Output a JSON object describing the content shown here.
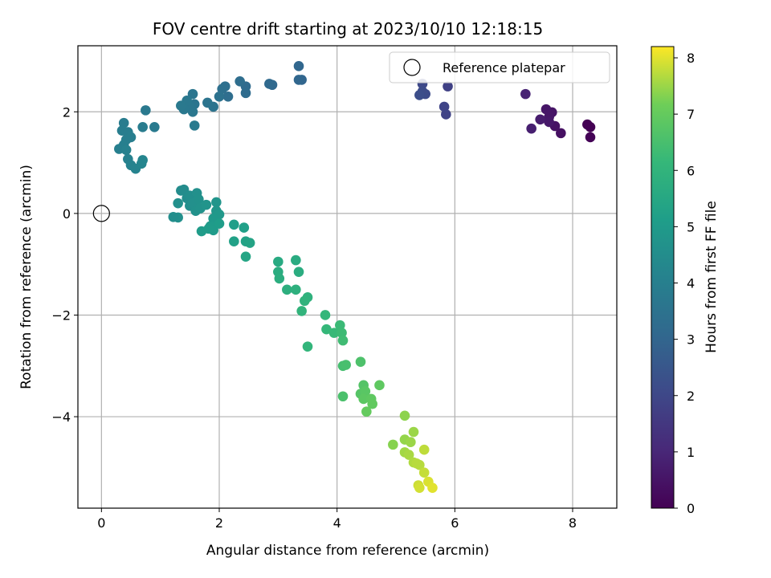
{
  "chart_data": {
    "type": "scatter",
    "title": "FOV centre drift starting at 2023/10/10 12:18:15",
    "xlabel": "Angular distance from reference (arcmin)",
    "ylabel": "Rotation from reference (arcmin)",
    "xlim": [
      -0.4,
      8.75
    ],
    "ylim": [
      -5.8,
      3.3
    ],
    "xticks": [
      0,
      2,
      4,
      6,
      8
    ],
    "yticks": [
      -4,
      -2,
      0,
      2
    ],
    "grid": true,
    "legend": {
      "placement": "top-right",
      "entries": [
        "Reference platepar"
      ]
    },
    "reference_point": {
      "x": 0,
      "y": 0
    },
    "colorbar": {
      "label": "Hours from first FF file",
      "min": 0,
      "max": 8.2,
      "ticks": [
        0,
        1,
        2,
        3,
        4,
        5,
        6,
        7,
        8
      ],
      "colormap": "viridis"
    },
    "series": [
      {
        "points": [
          [
            8.3,
            1.7,
            0.0
          ],
          [
            8.25,
            1.75,
            0.0
          ],
          [
            8.3,
            1.5,
            0.05
          ],
          [
            7.8,
            1.58,
            0.4
          ],
          [
            7.7,
            1.72,
            0.45
          ],
          [
            7.65,
            1.99,
            0.5
          ],
          [
            7.55,
            2.05,
            0.55
          ],
          [
            7.6,
            1.9,
            0.55
          ],
          [
            7.6,
            1.8,
            0.6
          ],
          [
            7.45,
            1.85,
            0.7
          ],
          [
            7.3,
            1.67,
            0.8
          ],
          [
            7.2,
            2.35,
            0.9
          ],
          [
            5.88,
            2.5,
            1.8
          ],
          [
            5.85,
            1.95,
            1.85
          ],
          [
            5.82,
            2.1,
            1.9
          ],
          [
            5.45,
            2.55,
            2.05
          ],
          [
            5.5,
            2.35,
            2.1
          ],
          [
            5.45,
            2.4,
            2.15
          ],
          [
            5.4,
            2.33,
            2.2
          ],
          [
            3.4,
            2.63,
            3.0
          ],
          [
            3.35,
            2.9,
            3.05
          ],
          [
            3.35,
            2.63,
            3.05
          ],
          [
            2.9,
            2.53,
            3.1
          ],
          [
            2.85,
            2.55,
            3.15
          ],
          [
            2.45,
            2.5,
            3.2
          ],
          [
            2.45,
            2.37,
            3.25
          ],
          [
            2.35,
            2.6,
            3.3
          ],
          [
            2.15,
            2.3,
            3.3
          ],
          [
            2.1,
            2.5,
            3.35
          ],
          [
            2.05,
            2.45,
            3.4
          ],
          [
            2.0,
            2.3,
            3.45
          ],
          [
            1.9,
            2.1,
            3.5
          ],
          [
            1.8,
            2.18,
            3.55
          ],
          [
            1.55,
            2.35,
            3.6
          ],
          [
            1.58,
            2.15,
            3.6
          ],
          [
            1.55,
            2.0,
            3.65
          ],
          [
            1.5,
            2.1,
            3.65
          ],
          [
            1.45,
            2.22,
            3.7
          ],
          [
            1.4,
            2.05,
            3.7
          ],
          [
            1.35,
            2.12,
            3.75
          ],
          [
            1.58,
            1.73,
            3.8
          ],
          [
            0.75,
            2.03,
            3.75
          ],
          [
            0.9,
            1.7,
            3.8
          ],
          [
            0.7,
            1.7,
            3.85
          ],
          [
            0.38,
            1.78,
            3.85
          ],
          [
            0.35,
            1.63,
            3.9
          ],
          [
            0.45,
            1.6,
            3.9
          ],
          [
            0.5,
            1.5,
            3.95
          ],
          [
            0.42,
            1.45,
            3.95
          ],
          [
            0.38,
            1.35,
            4.0
          ],
          [
            0.3,
            1.27,
            4.0
          ],
          [
            0.42,
            1.25,
            4.05
          ],
          [
            0.45,
            1.07,
            4.05
          ],
          [
            0.5,
            0.95,
            4.1
          ],
          [
            0.58,
            0.88,
            4.15
          ],
          [
            0.68,
            0.98,
            4.2
          ],
          [
            0.7,
            1.05,
            4.2
          ],
          [
            1.35,
            0.45,
            4.45
          ],
          [
            1.4,
            0.47,
            4.45
          ],
          [
            1.45,
            0.3,
            4.5
          ],
          [
            1.5,
            0.35,
            4.55
          ],
          [
            1.5,
            0.15,
            4.55
          ],
          [
            1.55,
            0.2,
            4.6
          ],
          [
            1.62,
            0.4,
            4.6
          ],
          [
            1.65,
            0.28,
            4.65
          ],
          [
            1.6,
            0.05,
            4.65
          ],
          [
            1.68,
            0.1,
            4.7
          ],
          [
            1.78,
            0.17,
            4.75
          ],
          [
            1.3,
            0.2,
            4.6
          ],
          [
            1.3,
            -0.08,
            4.6
          ],
          [
            1.22,
            -0.07,
            4.55
          ],
          [
            1.95,
            0.22,
            4.8
          ],
          [
            1.95,
            0.05,
            4.85
          ],
          [
            2.0,
            -0.02,
            4.9
          ],
          [
            1.9,
            -0.1,
            4.95
          ],
          [
            1.85,
            -0.25,
            5.0
          ],
          [
            1.9,
            -0.33,
            5.0
          ],
          [
            1.82,
            -0.3,
            5.05
          ],
          [
            1.7,
            -0.35,
            5.05
          ],
          [
            2.0,
            -0.2,
            5.1
          ],
          [
            2.25,
            -0.22,
            5.15
          ],
          [
            2.42,
            -0.28,
            5.2
          ],
          [
            2.25,
            -0.55,
            5.25
          ],
          [
            2.45,
            -0.55,
            5.3
          ],
          [
            2.52,
            -0.58,
            5.35
          ],
          [
            2.45,
            -0.85,
            5.4
          ],
          [
            3.0,
            -0.95,
            5.6
          ],
          [
            3.3,
            -0.92,
            5.65
          ],
          [
            3.35,
            -1.15,
            5.7
          ],
          [
            3.0,
            -1.15,
            5.7
          ],
          [
            3.02,
            -1.28,
            5.75
          ],
          [
            3.15,
            -1.5,
            5.8
          ],
          [
            3.3,
            -1.5,
            5.85
          ],
          [
            3.5,
            -1.65,
            5.9
          ],
          [
            3.45,
            -1.72,
            5.95
          ],
          [
            3.4,
            -1.92,
            6.0
          ],
          [
            3.5,
            -2.62,
            6.05
          ],
          [
            3.8,
            -2.0,
            6.1
          ],
          [
            3.82,
            -2.28,
            6.15
          ],
          [
            3.95,
            -2.35,
            6.2
          ],
          [
            4.05,
            -2.2,
            6.25
          ],
          [
            4.08,
            -2.35,
            6.3
          ],
          [
            4.1,
            -2.5,
            6.35
          ],
          [
            4.1,
            -3.0,
            6.45
          ],
          [
            4.15,
            -2.98,
            6.5
          ],
          [
            4.4,
            -2.92,
            6.6
          ],
          [
            4.1,
            -3.6,
            6.55
          ],
          [
            4.45,
            -3.38,
            6.7
          ],
          [
            4.4,
            -3.55,
            6.75
          ],
          [
            4.48,
            -3.5,
            6.8
          ],
          [
            4.45,
            -3.65,
            6.85
          ],
          [
            4.58,
            -3.65,
            6.9
          ],
          [
            4.6,
            -3.75,
            6.95
          ],
          [
            4.5,
            -3.9,
            7.0
          ],
          [
            4.72,
            -3.38,
            6.9
          ],
          [
            4.95,
            -4.55,
            7.35
          ],
          [
            5.15,
            -3.98,
            7.4
          ],
          [
            5.15,
            -4.45,
            7.45
          ],
          [
            5.25,
            -4.5,
            7.5
          ],
          [
            5.3,
            -4.3,
            7.5
          ],
          [
            5.15,
            -4.7,
            7.55
          ],
          [
            5.22,
            -4.75,
            7.6
          ],
          [
            5.3,
            -4.9,
            7.65
          ],
          [
            5.4,
            -4.95,
            7.7
          ],
          [
            5.35,
            -4.92,
            7.7
          ],
          [
            5.48,
            -4.65,
            7.75
          ],
          [
            5.48,
            -5.1,
            7.8
          ],
          [
            5.38,
            -5.35,
            7.85
          ],
          [
            5.4,
            -5.4,
            7.9
          ],
          [
            5.55,
            -5.28,
            7.95
          ],
          [
            5.62,
            -5.4,
            8.0
          ]
        ]
      }
    ]
  }
}
